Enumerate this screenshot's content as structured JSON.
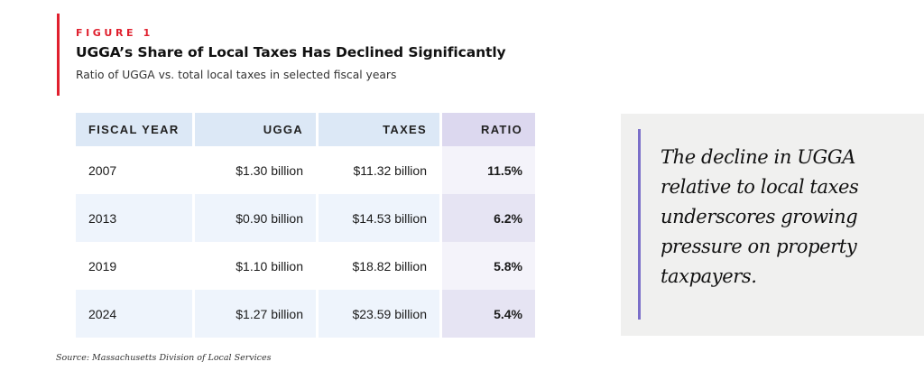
{
  "figure": {
    "label": "FIGURE 1",
    "title": "UGGA’s Share of Local Taxes Has Declined Significantly",
    "subtitle": "Ratio of UGGA vs. total local taxes in selected fiscal years",
    "accent_color": "#e0202e"
  },
  "table": {
    "headers": [
      "FISCAL YEAR",
      "UGGA",
      "TAXES",
      "RATIO"
    ],
    "rows": [
      {
        "year": "2007",
        "ugga": "$1.30 billion",
        "taxes": "$11.32 billion",
        "ratio": "11.5%"
      },
      {
        "year": "2013",
        "ugga": "$0.90 billion",
        "taxes": "$14.53 billion",
        "ratio": "6.2%"
      },
      {
        "year": "2019",
        "ugga": "$1.10 billion",
        "taxes": "$18.82 billion",
        "ratio": "5.8%"
      },
      {
        "year": "2024",
        "ugga": "$1.27 billion",
        "taxes": "$23.59 billion",
        "ratio": "5.4%"
      }
    ]
  },
  "source": "Source: Massachusetts Division of Local Services",
  "callout": {
    "text": "The decline in UGGA relative to local taxes underscores growing pressure on property taxpayers.",
    "accent_color": "#7b6fc9"
  },
  "chart_data": {
    "type": "table",
    "title": "UGGA’s Share of Local Taxes Has Declined Significantly",
    "subtitle": "Ratio of UGGA vs. total local taxes in selected fiscal years",
    "columns": [
      "FISCAL YEAR",
      "UGGA",
      "TAXES",
      "RATIO"
    ],
    "categories": [
      "2007",
      "2013",
      "2019",
      "2024"
    ],
    "series": [
      {
        "name": "UGGA ($ billion)",
        "values": [
          1.3,
          0.9,
          1.1,
          1.27
        ]
      },
      {
        "name": "Taxes ($ billion)",
        "values": [
          11.32,
          14.53,
          18.82,
          23.59
        ]
      },
      {
        "name": "Ratio (%)",
        "values": [
          11.5,
          6.2,
          5.8,
          5.4
        ]
      }
    ],
    "source": "Massachusetts Division of Local Services"
  }
}
